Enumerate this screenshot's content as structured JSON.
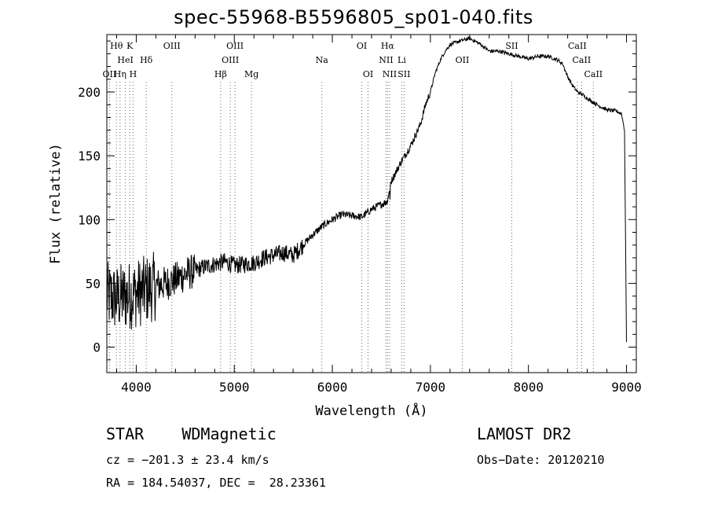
{
  "title": "spec-55968-B5596805_sp01-040.fits",
  "info": {
    "star_class": "STAR    WDMagnetic",
    "survey": "LAMOST DR2",
    "cz": "cz = −201.3 ± 23.4 km/s",
    "obs_date": "Obs−Date: 20120210",
    "radec": "RA = 184.54037, DEC =  28.23361"
  },
  "chart_data": {
    "type": "line",
    "title": "spec-55968-B5596805_sp01-040.fits",
    "xlabel": "Wavelength (Å)",
    "ylabel": "Flux (relative)",
    "xlim": [
      3700,
      9100
    ],
    "ylim": [
      -20,
      245
    ],
    "xticks": [
      4000,
      5000,
      6000,
      7000,
      8000,
      9000
    ],
    "yticks": [
      0,
      50,
      100,
      150,
      200
    ],
    "grid": false,
    "series": [
      {
        "x": [
          3700,
          3800,
          3900,
          4000,
          4100,
          4200,
          4300,
          4400,
          4500,
          4600,
          4700,
          4800,
          4900,
          5000,
          5100,
          5200,
          5300,
          5400,
          5500,
          5600,
          5700,
          5800,
          5900,
          6000,
          6100,
          6200,
          6300,
          6400,
          6500,
          6560,
          6600,
          6700,
          6800,
          6900,
          6950,
          7000,
          7050,
          7100,
          7150,
          7200,
          7300,
          7400,
          7500,
          7600,
          7700,
          7800,
          7900,
          8000,
          8100,
          8200,
          8300,
          8350,
          8400,
          8450,
          8500,
          8550,
          8600,
          8700,
          8800,
          8900,
          8950,
          8980,
          9000
        ],
        "y": [
          40,
          38,
          40,
          42,
          45,
          48,
          50,
          53,
          57,
          60,
          63,
          65,
          67,
          64,
          65,
          66,
          70,
          72,
          74,
          72,
          80,
          88,
          95,
          100,
          104,
          103,
          102,
          108,
          112,
          114,
          130,
          145,
          158,
          175,
          190,
          200,
          215,
          225,
          232,
          237,
          240,
          242,
          238,
          232,
          232,
          230,
          228,
          226,
          228,
          228,
          225,
          222,
          212,
          205,
          200,
          198,
          195,
          190,
          186,
          185,
          183,
          170,
          5
        ]
      }
    ],
    "lines": [
      {
        "x": 3727,
        "labels": [
          "OII"
        ],
        "rows": [
          2
        ]
      },
      {
        "x": 3798,
        "labels": [
          "Hθ"
        ],
        "rows": [
          0
        ]
      },
      {
        "x": 3835,
        "labels": [
          "Hη"
        ],
        "rows": [
          2
        ]
      },
      {
        "x": 3889,
        "labels": [
          "HeI"
        ],
        "rows": [
          1
        ]
      },
      {
        "x": 3934,
        "labels": [
          "K"
        ],
        "rows": [
          0
        ]
      },
      {
        "x": 3968,
        "labels": [
          "H"
        ],
        "rows": [
          2
        ]
      },
      {
        "x": 4102,
        "labels": [
          "Hδ"
        ],
        "rows": [
          1
        ]
      },
      {
        "x": 4363,
        "labels": [
          "OIII"
        ],
        "rows": [
          0
        ]
      },
      {
        "x": 4861,
        "labels": [
          "Hβ"
        ],
        "rows": [
          2
        ]
      },
      {
        "x": 4959,
        "labels": [
          "OIII"
        ],
        "rows": [
          1
        ]
      },
      {
        "x": 5007,
        "labels": [
          "OIII"
        ],
        "rows": [
          0
        ]
      },
      {
        "x": 5175,
        "labels": [
          "Mg"
        ],
        "rows": [
          2
        ]
      },
      {
        "x": 5893,
        "labels": [
          "Na"
        ],
        "rows": [
          1
        ]
      },
      {
        "x": 6300,
        "labels": [
          "OI"
        ],
        "rows": [
          0
        ]
      },
      {
        "x": 6364,
        "labels": [
          "OI"
        ],
        "rows": [
          2
        ]
      },
      {
        "x": 6548,
        "labels": [
          "NII"
        ],
        "rows": [
          1
        ]
      },
      {
        "x": 6563,
        "labels": [
          "Hα"
        ],
        "rows": [
          0
        ]
      },
      {
        "x": 6584,
        "labels": [
          "NII"
        ],
        "rows": [
          2
        ]
      },
      {
        "x": 6708,
        "labels": [
          "Li"
        ],
        "rows": [
          1
        ]
      },
      {
        "x": 6731,
        "labels": [
          "SII"
        ],
        "rows": [
          2
        ]
      },
      {
        "x": 7325,
        "labels": [
          "OII"
        ],
        "rows": [
          1
        ]
      },
      {
        "x": 7830,
        "labels": [
          "SII"
        ],
        "rows": [
          0
        ]
      },
      {
        "x": 8498,
        "labels": [
          "CaII"
        ],
        "rows": [
          0
        ]
      },
      {
        "x": 8542,
        "labels": [
          "CaII"
        ],
        "rows": [
          1
        ]
      },
      {
        "x": 8662,
        "labels": [
          "CaII"
        ],
        "rows": [
          2
        ]
      }
    ]
  }
}
